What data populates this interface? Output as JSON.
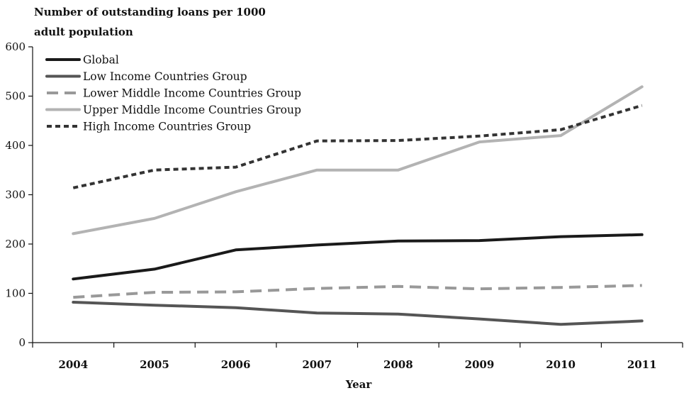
{
  "chart_data": {
    "type": "line",
    "title": "",
    "ylabel_lines": [
      "Number of outstanding loans per 1000",
      "adult population"
    ],
    "xlabel": "Year",
    "ylim": [
      0,
      600
    ],
    "yticks": [
      0,
      100,
      200,
      300,
      400,
      500,
      600
    ],
    "categories": [
      "2004",
      "2005",
      "2006",
      "2007",
      "2008",
      "2009",
      "2010",
      "2011"
    ],
    "grid": false,
    "legend_position": "top-left",
    "series": [
      {
        "name": "Global",
        "color": "#1a1a1a",
        "dash": "solid",
        "values": [
          129,
          149,
          188,
          198,
          206,
          207,
          215,
          219
        ]
      },
      {
        "name": "Low Income Countries Group",
        "color": "#555555",
        "dash": "solid",
        "values": [
          82,
          76,
          71,
          60,
          58,
          48,
          37,
          44
        ]
      },
      {
        "name": "Lower Middle Income Countries Group",
        "color": "#999999",
        "dash": "dashed",
        "values": [
          92,
          102,
          103,
          110,
          114,
          109,
          112,
          116
        ]
      },
      {
        "name": "Upper Middle Income Countries Group",
        "color": "#b3b3b3",
        "dash": "solid",
        "values": [
          221,
          252,
          306,
          350,
          350,
          407,
          420,
          519
        ]
      },
      {
        "name": "High Income Countries Group",
        "color": "#333333",
        "dash": "dotted",
        "values": [
          314,
          350,
          356,
          409,
          410,
          419,
          432,
          481
        ]
      }
    ]
  }
}
